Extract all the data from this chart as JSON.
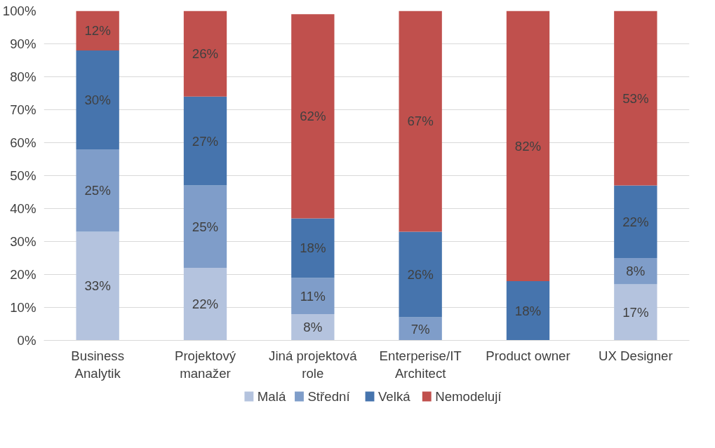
{
  "chart_data": {
    "type": "bar",
    "stacked": true,
    "categories": [
      "Business Analytik",
      "Projektový manažer",
      "Jiná projektová role",
      "Enterperise/IT Architect",
      "Product owner",
      "UX Designer"
    ],
    "series": [
      {
        "name": "Malá",
        "color": "#b4c3de",
        "values": [
          33,
          22,
          8,
          null,
          null,
          17
        ],
        "value_labels": [
          "33%",
          "22%",
          "8%",
          null,
          null,
          "17%"
        ]
      },
      {
        "name": "Střední",
        "color": "#7f9dc9",
        "values": [
          25,
          25,
          11,
          7,
          null,
          8
        ],
        "value_labels": [
          "25%",
          "25%",
          "11%",
          "7%",
          null,
          "8%"
        ]
      },
      {
        "name": "Velká",
        "color": "#4674ad",
        "values": [
          30,
          27,
          18,
          26,
          18,
          22
        ],
        "value_labels": [
          "30%",
          "27%",
          "18%",
          "26%",
          "18%",
          "22%"
        ]
      },
      {
        "name": "Nemodelují",
        "color": "#c0504d",
        "values": [
          12,
          26,
          62,
          67,
          82,
          53
        ],
        "value_labels": [
          "12%",
          "26%",
          "62%",
          "67%",
          "82%",
          "53%"
        ]
      }
    ],
    "ylim": [
      0,
      100
    ],
    "yticks": [
      {
        "value": 0,
        "label": "0%"
      },
      {
        "value": 10,
        "label": "10%"
      },
      {
        "value": 20,
        "label": "20%"
      },
      {
        "value": 30,
        "label": "30%"
      },
      {
        "value": 40,
        "label": "40%"
      },
      {
        "value": 50,
        "label": "50%"
      },
      {
        "value": 60,
        "label": "60%"
      },
      {
        "value": 70,
        "label": "70%"
      },
      {
        "value": 80,
        "label": "80%"
      },
      {
        "value": 90,
        "label": "90%"
      },
      {
        "value": 100,
        "label": "100%"
      }
    ],
    "grid": "y",
    "legend": "bottom"
  }
}
